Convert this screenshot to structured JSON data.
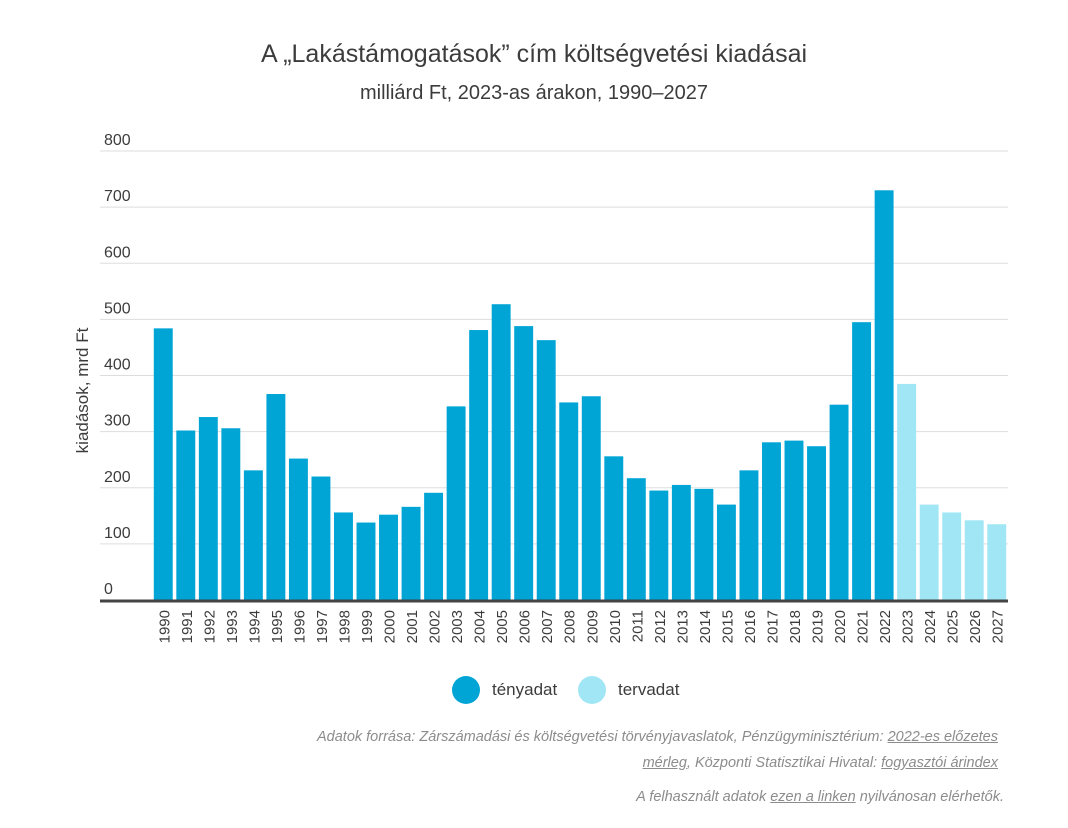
{
  "title": "A „Lakástámogatások” cím költségvetési kiadásai",
  "subtitle": "milliárd Ft, 2023-as árakon, 1990–2027",
  "chart_data": {
    "type": "bar",
    "ylabel": "kiadások, mrd Ft",
    "xlabel": "",
    "ylim": [
      0,
      800
    ],
    "yticks": [
      0,
      100,
      200,
      300,
      400,
      500,
      600,
      700,
      800
    ],
    "grid": true,
    "legend_placement": "bottom-center",
    "categories": [
      "1990",
      "1991",
      "1992",
      "1993",
      "1994",
      "1995",
      "1996",
      "1997",
      "1998",
      "1999",
      "2000",
      "2001",
      "2002",
      "2003",
      "2004",
      "2005",
      "2006",
      "2007",
      "2008",
      "2009",
      "2010",
      "2011",
      "2012",
      "2013",
      "2014",
      "2015",
      "2016",
      "2017",
      "2018",
      "2019",
      "2020",
      "2021",
      "2022",
      "2023",
      "2024",
      "2025",
      "2026",
      "2027"
    ],
    "values": [
      484,
      302,
      326,
      306,
      231,
      367,
      252,
      220,
      156,
      138,
      152,
      166,
      191,
      345,
      481,
      527,
      488,
      463,
      352,
      363,
      256,
      217,
      195,
      205,
      198,
      170,
      231,
      281,
      284,
      274,
      348,
      495,
      730,
      385,
      170,
      156,
      142,
      135
    ],
    "series": [
      {
        "name": "tényadat",
        "color": "#00a5d6",
        "range": [
          "1990",
          "2022"
        ]
      },
      {
        "name": "tervadat",
        "color": "#a0e6f5",
        "range": [
          "2023",
          "2027"
        ]
      }
    ]
  },
  "legend": {
    "actual": {
      "label": "tényadat",
      "color": "#00a5d6"
    },
    "planned": {
      "label": "tervadat",
      "color": "#a0e6f5"
    }
  },
  "source": {
    "prefix": "Adatok forrása: Zárszámadási és költségvetési törvényjavaslatok, Pénzügyminisztérium: ",
    "link1": "2022-es előzetes mérleg",
    "middle": ", Központi Statisztikai Hivatal: ",
    "link2": "fogyasztói árindex"
  },
  "note": {
    "prefix": "A felhasznált adatok ",
    "link": "ezen a linken",
    "suffix": " nyilvánosan elérhetők."
  }
}
